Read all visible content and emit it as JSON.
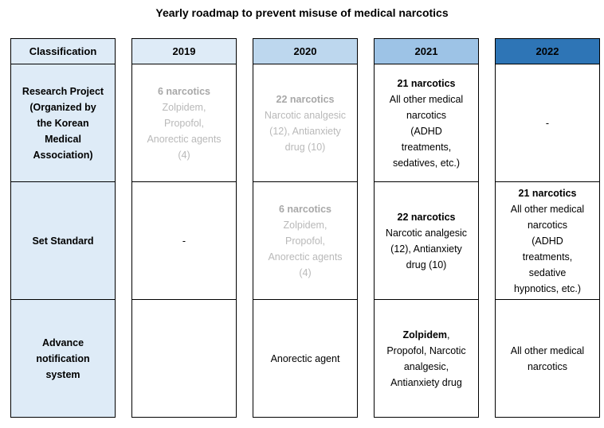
{
  "title": "Yearly roadmap to prevent misuse of medical narcotics",
  "palette": {
    "light_blue": "#DEEBF7",
    "medium_light_blue": "#BDD7EE",
    "medium_blue": "#9DC3E6",
    "dark_blue": "#2E75B6",
    "muted_bold_text": "#A8A8A8",
    "muted_text": "#B9B9B9",
    "text": "#000000",
    "border": "#000000"
  },
  "table": {
    "row_labels": [
      "Research Project (Organized by the Korean Medical Association)",
      "Set Standard",
      "Advance notification system"
    ],
    "columns": [
      {
        "id": "classification",
        "header": "Classification",
        "header_bg": "#DEEBF7",
        "cell_bg": "#DEEBF7",
        "cells": [
          [
            {
              "text": "Research Project\n(Organized by\nthe Korean\nMedical\nAssociation)",
              "style": "head"
            }
          ],
          [
            {
              "text": "Set Standard",
              "style": "head"
            }
          ],
          [
            {
              "text": "Advance\nnotification\nsystem",
              "style": "head"
            }
          ]
        ]
      },
      {
        "id": "2019",
        "header": "2019",
        "header_bg": "#DEEBF7",
        "cell_bg": "#FFFFFF",
        "cells": [
          [
            {
              "text": "6 narcotics",
              "style": "head-gray"
            },
            {
              "text": "Zolpidem,\nPropofol,\nAnorectic agents\n(4)",
              "style": "body-gray"
            }
          ],
          [
            {
              "text": "-",
              "style": "body"
            }
          ],
          []
        ]
      },
      {
        "id": "2020",
        "header": "2020",
        "header_bg": "#BDD7EE",
        "cell_bg": "#FFFFFF",
        "cells": [
          [
            {
              "text": "22 narcotics",
              "style": "head-gray"
            },
            {
              "text": "Narcotic analgesic\n(12), Antianxiety\ndrug (10)",
              "style": "body-gray"
            }
          ],
          [
            {
              "text": "6 narcotics",
              "style": "head-gray"
            },
            {
              "text": "Zolpidem,\nPropofol,\nAnorectic agents\n(4)",
              "style": "body-gray"
            }
          ],
          [
            {
              "text": "Anorectic agent",
              "style": "body"
            }
          ]
        ]
      },
      {
        "id": "2021",
        "header": "2021",
        "header_bg": "#9DC3E6",
        "cell_bg": "#FFFFFF",
        "cells": [
          [
            {
              "text": "21 narcotics",
              "style": "head-black"
            },
            {
              "text": "All other medical\nnarcotics\n(ADHD\ntreatments,\nsedatives, etc.)",
              "style": "body-black"
            }
          ],
          [
            {
              "text": "22 narcotics",
              "style": "head-black"
            },
            {
              "text": "Narcotic analgesic\n(12), Antianxiety\ndrug (10)",
              "style": "body-black"
            }
          ],
          [
            {
              "text": "Zolpidem",
              "style": "inline-bold"
            },
            {
              "text": ",\nPropofol, Narcotic\nanalgesic,\nAntianxiety drug",
              "style": "inline-body"
            }
          ]
        ]
      },
      {
        "id": "2022",
        "header": "2022",
        "header_bg": "#2E75B6",
        "cell_bg": "#FFFFFF",
        "cells": [
          [
            {
              "text": "-",
              "style": "body"
            }
          ],
          [
            {
              "text": "21 narcotics",
              "style": "head-black"
            },
            {
              "text": "All other medical\nnarcotics\n(ADHD\ntreatments,\nsedative\nhypnotics, etc.)",
              "style": "body-black"
            }
          ],
          [
            {
              "text": "All other medical\nnarcotics",
              "style": "body"
            }
          ]
        ]
      }
    ]
  }
}
